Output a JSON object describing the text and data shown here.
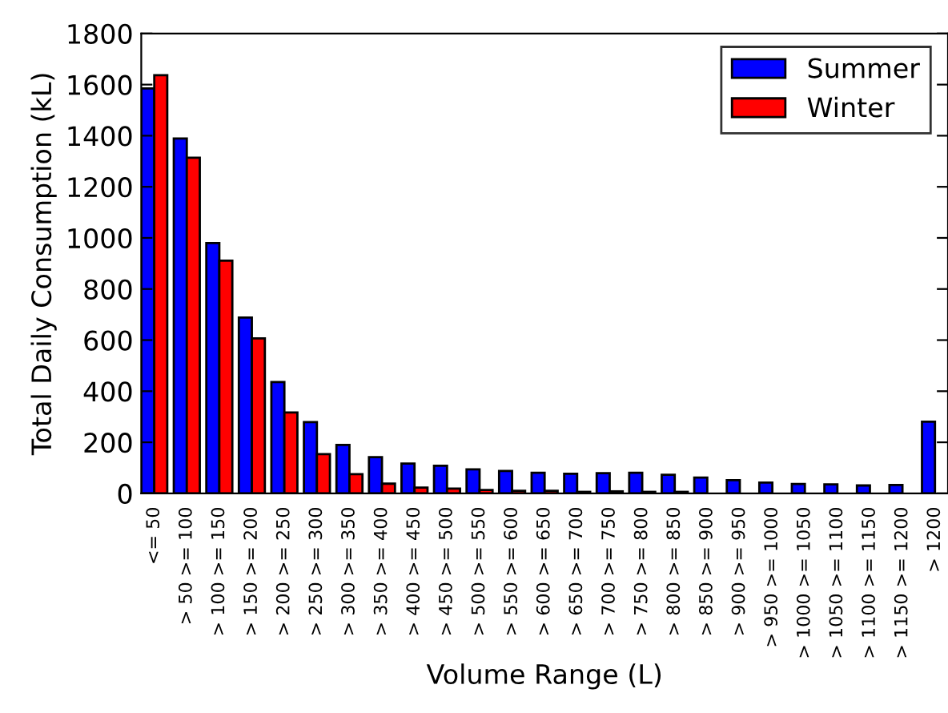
{
  "chart_data": {
    "type": "bar",
    "xlabel": "Volume Range (L)",
    "ylabel": "Total Daily Consumption (kL)",
    "categories": [
      "<= 50",
      "> 50 >= 100",
      "> 100 >= 150",
      "> 150 >= 200",
      "> 200 >= 250",
      "> 250 >= 300",
      "> 300 >= 350",
      "> 350 >= 400",
      "> 400 >= 450",
      "> 450 >= 500",
      "> 500 >= 550",
      "> 550 >= 600",
      "> 600 >= 650",
      "> 650 >= 700",
      "> 700 >= 750",
      "> 750 >= 800",
      "> 800 >= 850",
      "> 850 >= 900",
      "> 900 >= 950",
      "> 950 >= 1000",
      "> 1000 >= 1050",
      "> 1050 >= 1100",
      "> 1100 >= 1150",
      "> 1150 >= 1200",
      "> 1200"
    ],
    "series": [
      {
        "name": "Summer",
        "color": "#0000ff",
        "values": [
          1585,
          1389,
          980,
          688,
          436,
          279,
          190,
          142,
          117,
          108,
          94,
          88,
          81,
          77,
          79,
          81,
          73,
          62,
          52,
          42,
          37,
          35,
          31,
          33,
          281
        ]
      },
      {
        "name": "Winter",
        "color": "#ff0000",
        "values": [
          1637,
          1314,
          911,
          607,
          317,
          154,
          75,
          38,
          23,
          19,
          13,
          10,
          10,
          6,
          8,
          6,
          6,
          null,
          null,
          null,
          null,
          null,
          null,
          null,
          null
        ]
      }
    ],
    "ylim": [
      0,
      1800
    ],
    "yticks": [
      0,
      200,
      400,
      600,
      800,
      1000,
      1200,
      1400,
      1600,
      1800
    ],
    "legend": "top right",
    "grid": false
  }
}
